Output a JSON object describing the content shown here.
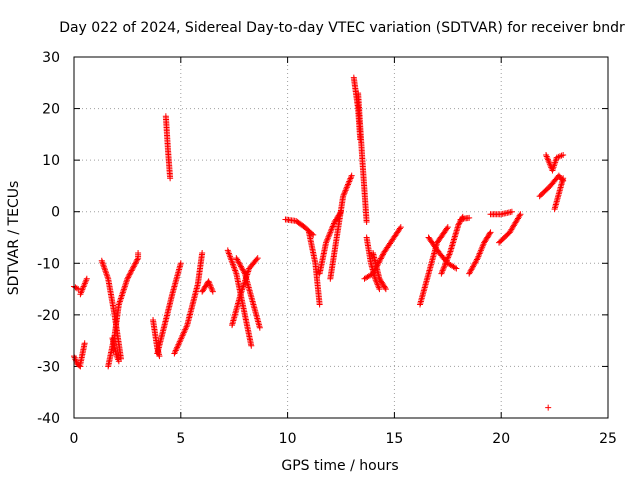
{
  "chart_data": {
    "type": "scatter",
    "title": "Day 022 of 2024, Sidereal Day-to-day VTEC variation (SDTVAR) for receiver bndr",
    "xlabel": "GPS time / hours",
    "ylabel": "SDTVAR / TECUs",
    "xlim": [
      0,
      25
    ],
    "ylim": [
      -40,
      30
    ],
    "xticks": [
      0,
      5,
      10,
      15,
      20,
      25
    ],
    "yticks": [
      -40,
      -30,
      -20,
      -10,
      0,
      10,
      20,
      30
    ],
    "grid": true,
    "marker": "+",
    "color": "#ff0000",
    "segments": [
      {
        "x": [
          0.0,
          0.15,
          0.3
        ],
        "y": [
          -28.0,
          -29.5,
          -30.0
        ]
      },
      {
        "x": [
          0.3,
          0.5
        ],
        "y": [
          -29.5,
          -25.5
        ]
      },
      {
        "x": [
          0.0,
          0.2
        ],
        "y": [
          -14.5,
          -15.0
        ]
      },
      {
        "x": [
          0.3,
          0.6
        ],
        "y": [
          -16.0,
          -13.0
        ]
      },
      {
        "x": [
          1.3,
          1.6,
          1.9,
          2.2
        ],
        "y": [
          -9.5,
          -13.0,
          -20.0,
          -28.5
        ]
      },
      {
        "x": [
          1.6,
          1.9,
          2.1,
          2.5,
          3.0,
          3.0
        ],
        "y": [
          -30.0,
          -24.0,
          -18.0,
          -13.0,
          -9.0,
          -8.0
        ]
      },
      {
        "x": [
          1.8,
          2.0,
          2.1
        ],
        "y": [
          -24.5,
          -28.0,
          -29.0
        ]
      },
      {
        "x": [
          3.7,
          3.9,
          4.0
        ],
        "y": [
          -21.0,
          -26.5,
          -28.0
        ]
      },
      {
        "x": [
          3.9,
          4.3,
          4.6,
          5.0
        ],
        "y": [
          -27.5,
          -21.0,
          -16.0,
          -10.0
        ]
      },
      {
        "x": [
          4.3,
          4.4,
          4.5
        ],
        "y": [
          18.5,
          12.0,
          6.5
        ]
      },
      {
        "x": [
          4.7,
          5.3,
          5.8,
          6.0
        ],
        "y": [
          -27.5,
          -22.0,
          -14.0,
          -8.0
        ]
      },
      {
        "x": [
          6.0,
          6.3,
          6.5
        ],
        "y": [
          -15.5,
          -13.5,
          -15.5
        ]
      },
      {
        "x": [
          7.2,
          7.6,
          8.0,
          8.3
        ],
        "y": [
          -7.5,
          -12.0,
          -20.0,
          -26.0
        ]
      },
      {
        "x": [
          7.4,
          7.8,
          8.2,
          8.6
        ],
        "y": [
          -22.0,
          -16.0,
          -11.0,
          -9.0
        ]
      },
      {
        "x": [
          7.6,
          8.0,
          8.4,
          8.7
        ],
        "y": [
          -9.0,
          -12.0,
          -18.0,
          -22.5
        ]
      },
      {
        "x": [
          9.9,
          10.4,
          10.8,
          11.2
        ],
        "y": [
          -1.5,
          -1.8,
          -3.0,
          -4.5
        ]
      },
      {
        "x": [
          11.0,
          11.3,
          11.5
        ],
        "y": [
          -4.0,
          -10.0,
          -18.0
        ]
      },
      {
        "x": [
          11.5,
          11.8,
          12.2,
          12.5
        ],
        "y": [
          -12.0,
          -6.0,
          -2.0,
          0.0
        ]
      },
      {
        "x": [
          12.0,
          12.3,
          12.6,
          13.0
        ],
        "y": [
          -13.0,
          -5.0,
          3.0,
          7.0
        ]
      },
      {
        "x": [
          13.1,
          13.3,
          13.4
        ],
        "y": [
          26.0,
          20.0,
          14.0
        ]
      },
      {
        "x": [
          13.3,
          13.5,
          13.7
        ],
        "y": [
          23.0,
          10.0,
          -2.0
        ]
      },
      {
        "x": [
          13.7,
          13.9,
          14.1,
          14.3
        ],
        "y": [
          -5.0,
          -10.0,
          -13.0,
          -15.0
        ]
      },
      {
        "x": [
          13.6,
          14.0,
          14.5,
          15.3
        ],
        "y": [
          -13.0,
          -12.0,
          -8.0,
          -3.0
        ]
      },
      {
        "x": [
          14.0,
          14.3,
          14.6
        ],
        "y": [
          -8.0,
          -13.0,
          -15.0
        ]
      },
      {
        "x": [
          16.2,
          16.6,
          17.0,
          17.5
        ],
        "y": [
          -18.0,
          -12.0,
          -6.0,
          -3.0
        ]
      },
      {
        "x": [
          16.6,
          17.1,
          17.5,
          17.9
        ],
        "y": [
          -5.0,
          -8.0,
          -10.0,
          -11.0
        ]
      },
      {
        "x": [
          17.2,
          17.6,
          18.0,
          18.2
        ],
        "y": [
          -12.0,
          -8.0,
          -2.5,
          -1.0
        ]
      },
      {
        "x": [
          18.1,
          18.3,
          18.5
        ],
        "y": [
          -1.5,
          -1.3,
          -1.2
        ]
      },
      {
        "x": [
          18.5,
          18.9,
          19.2,
          19.5
        ],
        "y": [
          -12.0,
          -9.0,
          -6.0,
          -4.0
        ]
      },
      {
        "x": [
          19.5,
          20.0,
          20.5
        ],
        "y": [
          -0.5,
          -0.5,
          0.0
        ]
      },
      {
        "x": [
          19.9,
          20.4,
          20.9
        ],
        "y": [
          -6.0,
          -4.0,
          -0.5
        ]
      },
      {
        "x": [
          21.8,
          22.3,
          22.7,
          22.9
        ],
        "y": [
          3.0,
          5.0,
          7.0,
          6.0
        ]
      },
      {
        "x": [
          22.1,
          22.4,
          22.6,
          22.9
        ],
        "y": [
          11.0,
          8.0,
          10.5,
          11.0
        ]
      },
      {
        "x": [
          22.5,
          22.7,
          22.9
        ],
        "y": [
          0.5,
          3.5,
          6.5
        ]
      },
      {
        "x": [
          22.2
        ],
        "y": [
          -38.0
        ]
      }
    ]
  }
}
